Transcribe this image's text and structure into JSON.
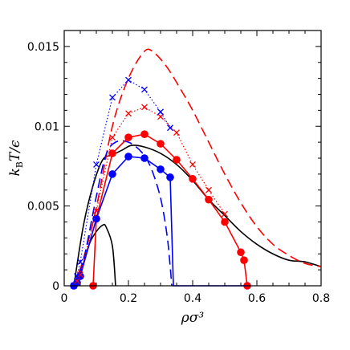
{
  "chart_data": {
    "type": "line",
    "title": "",
    "xlabel": "ρσ³",
    "ylabel": "k_BT/ϵ",
    "xlim": [
      0,
      0.8
    ],
    "ylim": [
      0,
      0.016
    ],
    "x_ticks": [
      0,
      0.2,
      0.4,
      0.6,
      0.8
    ],
    "x_tick_labels": [
      "0",
      "0.2",
      "0.4",
      "0.6",
      "0.8"
    ],
    "y_ticks": [
      0,
      0.005,
      0.01,
      0.015
    ],
    "y_tick_labels": [
      "0",
      "0.005",
      "0.01",
      "0.015"
    ],
    "grid": false,
    "legend": "none",
    "series": [
      {
        "style": "solid-line",
        "color": "#000000",
        "x": [
          0.03,
          0.06,
          0.09,
          0.12,
          0.15,
          0.18,
          0.21,
          0.25,
          0.3,
          0.35,
          0.4,
          0.45,
          0.5,
          0.55,
          0.6,
          0.65,
          0.7,
          0.75,
          0.8
        ],
        "y": [
          0.0,
          0.0038,
          0.0063,
          0.0079,
          0.0082,
          0.0085,
          0.0088,
          0.0087,
          0.0083,
          0.0076,
          0.0066,
          0.0054,
          0.0044,
          0.0034,
          0.0026,
          0.002,
          0.0016,
          0.0015,
          0.0012
        ]
      },
      {
        "style": "solid-line",
        "color": "#000000",
        "x": [
          0.04,
          0.06,
          0.08,
          0.1,
          0.12,
          0.13,
          0.15,
          0.16
        ],
        "y": [
          0.0,
          0.0014,
          0.0027,
          0.0034,
          0.0038,
          0.0037,
          0.0025,
          0.0
        ]
      },
      {
        "style": "long-dash",
        "color": "#ff0000",
        "x": [
          0.03,
          0.06,
          0.1,
          0.15,
          0.2,
          0.25,
          0.28,
          0.32,
          0.36,
          0.4,
          0.45,
          0.5,
          0.55,
          0.6,
          0.65,
          0.7,
          0.75,
          0.8
        ],
        "y": [
          0.0,
          0.0017,
          0.0049,
          0.01,
          0.013,
          0.0147,
          0.0146,
          0.0137,
          0.0124,
          0.011,
          0.009,
          0.007,
          0.0052,
          0.0037,
          0.0026,
          0.0019,
          0.0014,
          0.0012
        ]
      },
      {
        "style": "long-dash",
        "color": "#0000ff",
        "x": [
          0.03,
          0.06,
          0.1,
          0.13,
          0.16,
          0.2,
          0.24,
          0.27,
          0.3,
          0.32,
          0.33,
          0.335
        ],
        "y": [
          0.0,
          0.0016,
          0.0056,
          0.0082,
          0.009,
          0.009,
          0.0084,
          0.0074,
          0.0055,
          0.0032,
          0.0012,
          0.0
        ]
      },
      {
        "style": "solid-line-dots",
        "color": "#ff0000",
        "x": [
          0.09,
          0.1,
          0.15,
          0.2,
          0.25,
          0.3,
          0.35,
          0.4,
          0.45,
          0.5,
          0.55,
          0.56,
          0.57
        ],
        "y": [
          0.0,
          0.0042,
          0.0083,
          0.0093,
          0.0095,
          0.0089,
          0.0079,
          0.0067,
          0.0054,
          0.004,
          0.0021,
          0.0016,
          0.0
        ]
      },
      {
        "style": "solid-line-dots",
        "color": "#0000ff",
        "x": [
          0.03,
          0.04,
          0.05,
          0.1,
          0.15,
          0.2,
          0.25,
          0.3,
          0.33,
          0.34,
          0.45,
          0.57
        ],
        "y": [
          0.0,
          0.0002,
          0.0006,
          0.0042,
          0.007,
          0.0081,
          0.008,
          0.0073,
          0.0068,
          0.0,
          0.0,
          0.0
        ],
        "markers_count": 9
      },
      {
        "style": "dotted-cross",
        "color": "#ff0000",
        "x": [
          0.04,
          0.05,
          0.1,
          0.15,
          0.2,
          0.25,
          0.3,
          0.35,
          0.4,
          0.45,
          0.5
        ],
        "y": [
          0.0003,
          0.0007,
          0.0047,
          0.0093,
          0.0108,
          0.0112,
          0.0106,
          0.0096,
          0.0076,
          0.006,
          0.0045
        ]
      },
      {
        "style": "dotted-cross",
        "color": "#0000ff",
        "x": [
          0.03,
          0.04,
          0.05,
          0.1,
          0.15,
          0.2,
          0.25,
          0.3,
          0.33
        ],
        "y": [
          0.0,
          0.0006,
          0.0015,
          0.0076,
          0.0118,
          0.0129,
          0.0123,
          0.0109,
          0.0099
        ]
      }
    ]
  }
}
